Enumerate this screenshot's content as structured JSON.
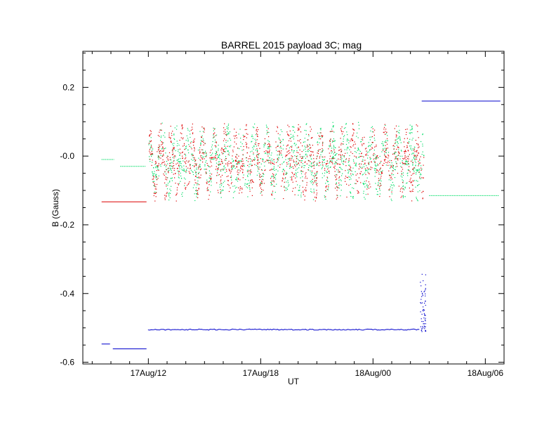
{
  "chart_data": {
    "type": "scatter",
    "title": "BARREL 2015 payload 3C; mag",
    "xlabel": "UT",
    "ylabel": "B (Gauss)",
    "x_unit": "hours, UT",
    "xlim": [
      8.5,
      31.0
    ],
    "ylim": [
      -0.605,
      0.305
    ],
    "x_ticks": [
      {
        "value": 12,
        "label": "17Aug/12"
      },
      {
        "value": 18,
        "label": "17Aug/18"
      },
      {
        "value": 24,
        "label": "18Aug/00"
      },
      {
        "value": 30,
        "label": "18Aug/06"
      }
    ],
    "y_ticks": [
      {
        "value": 0.2,
        "label": "0.2"
      },
      {
        "value": 0.0,
        "label": "-0.0"
      },
      {
        "value": -0.2,
        "label": "-0.2"
      },
      {
        "value": -0.4,
        "label": "-0.4"
      },
      {
        "value": -0.6,
        "label": "-0.6"
      }
    ],
    "grid": false,
    "legend": "none",
    "series": [
      {
        "color": "#00dd66",
        "segments": [
          {
            "kind": "flat",
            "x": [
              9.5,
              10.2
            ],
            "y": -0.01
          },
          {
            "kind": "flat",
            "x": [
              10.5,
              11.9
            ],
            "y": -0.03
          },
          {
            "kind": "scatter",
            "x": [
              12.0,
              26.7
            ],
            "y": [
              -0.13,
              0.1
            ]
          },
          {
            "kind": "flat",
            "x": [
              27.0,
              30.8
            ],
            "y": -0.115
          }
        ]
      },
      {
        "color": "#dd0000",
        "segments": [
          {
            "kind": "flat",
            "x": [
              9.5,
              11.9
            ],
            "y": -0.133
          },
          {
            "kind": "scatter",
            "x": [
              12.0,
              26.7
            ],
            "y": [
              -0.13,
              0.1
            ]
          }
        ]
      },
      {
        "color": "#0000cc",
        "segments": [
          {
            "kind": "flat",
            "x": [
              9.5,
              10.0
            ],
            "y": -0.547
          },
          {
            "kind": "flat",
            "x": [
              10.1,
              11.9
            ],
            "y": -0.561
          },
          {
            "kind": "flat",
            "x": [
              12.0,
              26.5
            ],
            "y": -0.505
          },
          {
            "kind": "spike",
            "x": [
              26.5,
              26.8
            ],
            "y": [
              -0.51,
              -0.34
            ]
          },
          {
            "kind": "flat",
            "x": [
              26.6,
              30.8
            ],
            "y": 0.16
          }
        ]
      }
    ]
  }
}
